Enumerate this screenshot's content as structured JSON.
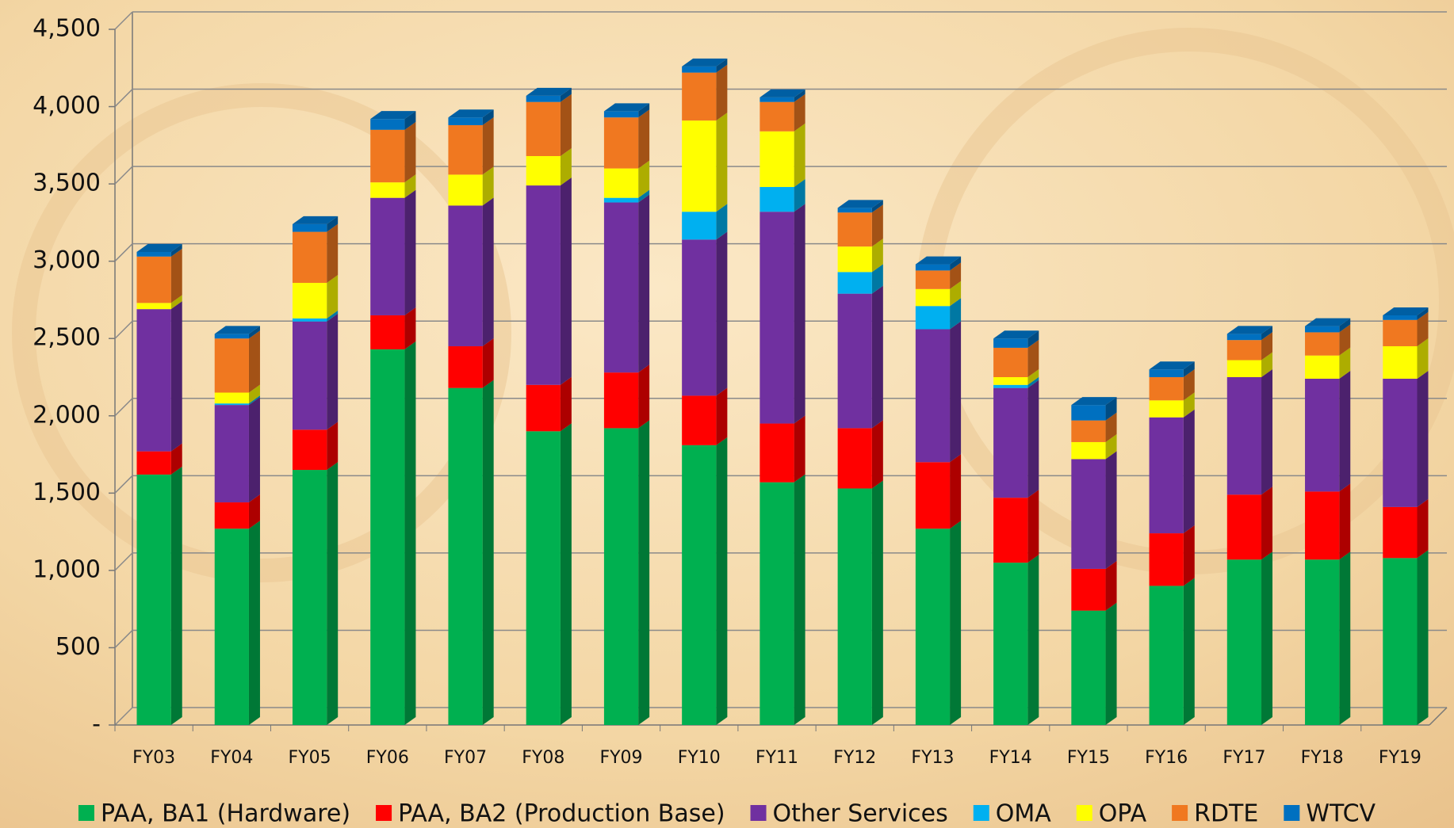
{
  "chart_data": {
    "type": "bar",
    "stacked": true,
    "categories": [
      "FY03",
      "FY04",
      "FY05",
      "FY06",
      "FY07",
      "FY08",
      "FY09",
      "FY10",
      "FY11",
      "FY12",
      "FY13",
      "FY14",
      "FY15",
      "FY16",
      "FY17",
      "FY18",
      "FY19"
    ],
    "series": [
      {
        "name": "PAA, BA1 (Hardware)",
        "color": "#00b050",
        "values": [
          1620,
          1270,
          1650,
          2430,
          2180,
          1900,
          1920,
          1810,
          1570,
          1530,
          1270,
          1050,
          740,
          900,
          1070,
          1070,
          1080
        ]
      },
      {
        "name": "PAA, BA2 (Production Base)",
        "color": "#ff0000",
        "values": [
          150,
          170,
          260,
          220,
          270,
          300,
          360,
          320,
          380,
          390,
          430,
          420,
          270,
          340,
          420,
          440,
          330
        ]
      },
      {
        "name": "Other Services",
        "color": "#7030a0",
        "values": [
          920,
          630,
          700,
          760,
          910,
          1290,
          1100,
          1010,
          1370,
          870,
          860,
          710,
          710,
          750,
          760,
          730,
          830
        ]
      },
      {
        "name": "OMA",
        "color": "#00b0f0",
        "values": [
          0,
          10,
          20,
          0,
          0,
          0,
          30,
          180,
          160,
          140,
          150,
          20,
          0,
          0,
          0,
          0,
          0
        ]
      },
      {
        "name": "OPA",
        "color": "#ffff00",
        "values": [
          40,
          70,
          230,
          100,
          200,
          190,
          190,
          590,
          360,
          165,
          110,
          50,
          110,
          110,
          110,
          150,
          210
        ]
      },
      {
        "name": "RDTE",
        "color": "#f07820",
        "values": [
          300,
          350,
          330,
          340,
          320,
          350,
          330,
          310,
          190,
          220,
          120,
          190,
          140,
          150,
          130,
          150,
          170
        ]
      },
      {
        "name": "WTCV",
        "color": "#0070c0",
        "values": [
          30,
          30,
          50,
          70,
          50,
          40,
          40,
          40,
          30,
          30,
          40,
          60,
          100,
          50,
          40,
          40,
          30
        ]
      }
    ],
    "ylim": [
      0,
      4500
    ],
    "yticks": [
      {
        "value": 0,
        "label": "-"
      },
      500,
      {
        "value": 1000,
        "label": "1,000"
      },
      {
        "value": 1500,
        "label": "1,500"
      },
      {
        "value": 2000,
        "label": "2,000"
      },
      {
        "value": 2500,
        "label": "2,500"
      },
      {
        "value": 3000,
        "label": "3,000"
      },
      {
        "value": 3500,
        "label": "3,500"
      },
      {
        "value": 4000,
        "label": "4,000"
      },
      {
        "value": 4500,
        "label": "4,500"
      }
    ],
    "grid": true,
    "legend": "bottom"
  }
}
